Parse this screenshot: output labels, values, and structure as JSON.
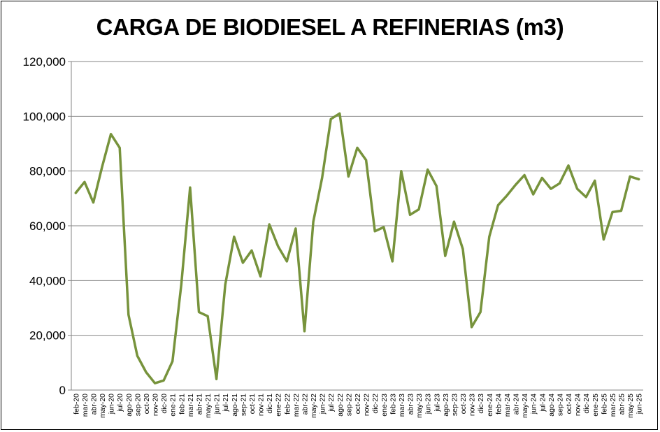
{
  "chart_data": {
    "type": "line",
    "title": "CARGA DE BIODIESEL A REFINERIAS (m3)",
    "xlabel": "",
    "ylabel": "",
    "ylim": [
      0,
      120000
    ],
    "yticks": [
      "0",
      "20,000",
      "40,000",
      "60,000",
      "80,000",
      "100,000",
      "120,000"
    ],
    "grid": true,
    "legend": "none",
    "color": "#77933C",
    "categories": [
      "feb-20",
      "mar-20",
      "abr-20",
      "may-20",
      "jun-20",
      "jul-20",
      "ago-20",
      "sep-20",
      "oct-20",
      "nov-20",
      "dic-20",
      "ene-21",
      "feb-21",
      "mar-21",
      "abr-21",
      "may-21",
      "jun-21",
      "jul-21",
      "ago-21",
      "sep-21",
      "oct-21",
      "nov-21",
      "dic-21",
      "ene-22",
      "feb-22",
      "mar-22",
      "abr-22",
      "may-22",
      "jun-22",
      "jul-22",
      "ago-22",
      "sep-22",
      "oct-22",
      "nov-22",
      "dic-22",
      "ene-23",
      "feb-23",
      "mar-23",
      "abr-23",
      "may-23",
      "jun-23",
      "jul-23",
      "ago-23",
      "sep-23",
      "oct-23",
      "nov-23",
      "dic-23",
      "ene-24",
      "feb-24",
      "mar-24",
      "abr-24",
      "may-24",
      "jun-24",
      "jul-24",
      "ago-24",
      "sep-24",
      "oct-24",
      "nov-24",
      "dic-24",
      "ene-25",
      "feb-25",
      "mar-25",
      "abr-25",
      "may-25",
      "jun-25"
    ],
    "values": [
      72000,
      76000,
      68500,
      81500,
      93500,
      88500,
      27500,
      12500,
      6500,
      2500,
      3500,
      10500,
      38500,
      74000,
      28500,
      27000,
      4000,
      38500,
      56000,
      46500,
      51000,
      41500,
      60500,
      52500,
      47000,
      59000,
      21500,
      61500,
      77500,
      99000,
      101000,
      78000,
      88500,
      84000,
      58000,
      59500,
      47000,
      80000,
      64000,
      66000,
      80500,
      74500,
      49000,
      61500,
      51500,
      23000,
      28500,
      56000,
      67500,
      71000,
      75000,
      78500,
      71500,
      77500,
      73500,
      75500,
      82000,
      73500,
      70500,
      76500,
      55000,
      65000,
      65500,
      78000,
      77000
    ]
  }
}
